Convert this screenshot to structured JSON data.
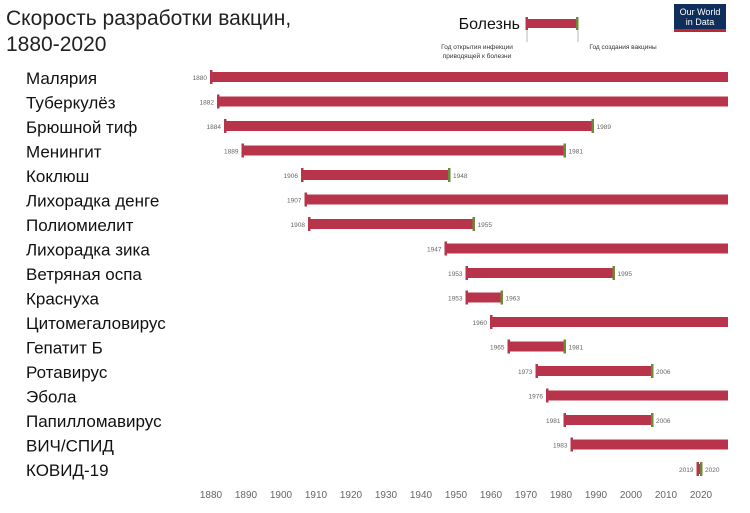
{
  "title_line1": "Скорость разработки вакцин,",
  "title_line2": "1880-2020",
  "logo_line1": "Our World",
  "logo_line2": "in Data",
  "legend": {
    "label": "Болезнь",
    "start_label_line1": "Год открытия инфекции",
    "start_label_line2": "приводящей к болезни",
    "end_label": "Год создания вакцины"
  },
  "colors": {
    "bar": "#b8344a",
    "end_marker": "#6b8a3a",
    "axis_text": "#666666"
  },
  "chart_data": {
    "type": "bar",
    "orientation": "horizontal-range",
    "x_ticks": [
      1880,
      1890,
      1900,
      1910,
      1920,
      1930,
      1940,
      1950,
      1960,
      1970,
      1980,
      1990,
      2000,
      2010,
      2020
    ],
    "xlim": [
      1880,
      2020
    ],
    "series": [
      {
        "disease": "Малярия",
        "start": 1880,
        "start_label": "1880",
        "end": null,
        "end_label": ""
      },
      {
        "disease": "Туберкулёз",
        "start": 1882,
        "start_label": "1882",
        "end": null,
        "end_label": ""
      },
      {
        "disease": "Брюшной тиф",
        "start": 1884,
        "start_label": "1884",
        "end": 1989,
        "end_label": "1989"
      },
      {
        "disease": "Менингит",
        "start": 1889,
        "start_label": "1889",
        "end": 1981,
        "end_label": "1981"
      },
      {
        "disease": "Коклюш",
        "start": 1906,
        "start_label": "1906",
        "end": 1948,
        "end_label": "1948"
      },
      {
        "disease": "Лихорадка денге",
        "start": 1907,
        "start_label": "1907",
        "end": null,
        "end_label": ""
      },
      {
        "disease": "Полиомиелит",
        "start": 1908,
        "start_label": "1908",
        "end": 1955,
        "end_label": "1955"
      },
      {
        "disease": "Лихорадка зика",
        "start": 1947,
        "start_label": "1947",
        "end": null,
        "end_label": ""
      },
      {
        "disease": "Ветряная оспа",
        "start": 1953,
        "start_label": "1953",
        "end": 1995,
        "end_label": "1995"
      },
      {
        "disease": "Краснуха",
        "start": 1953,
        "start_label": "1953",
        "end": 1963,
        "end_label": "1963"
      },
      {
        "disease": "Цитомегаловирус",
        "start": 1960,
        "start_label": "1960",
        "end": null,
        "end_label": ""
      },
      {
        "disease": "Гепатит Б",
        "start": 1965,
        "start_label": "1965",
        "end": 1981,
        "end_label": "1981"
      },
      {
        "disease": "Ротавирус",
        "start": 1973,
        "start_label": "1973",
        "end": 2006,
        "end_label": "2006"
      },
      {
        "disease": "Эбола",
        "start": 1976,
        "start_label": "1976",
        "end": null,
        "end_label": ""
      },
      {
        "disease": "Папилломавирус",
        "start": 1981,
        "start_label": "1981",
        "end": 2006,
        "end_label": "2006"
      },
      {
        "disease": "ВИЧ/СПИД",
        "start": 1983,
        "start_label": "1983",
        "end": null,
        "end_label": ""
      },
      {
        "disease": "КОВИД-19",
        "start": 2019,
        "start_label": "2019",
        "end": 2020,
        "end_label": "2020"
      }
    ]
  }
}
